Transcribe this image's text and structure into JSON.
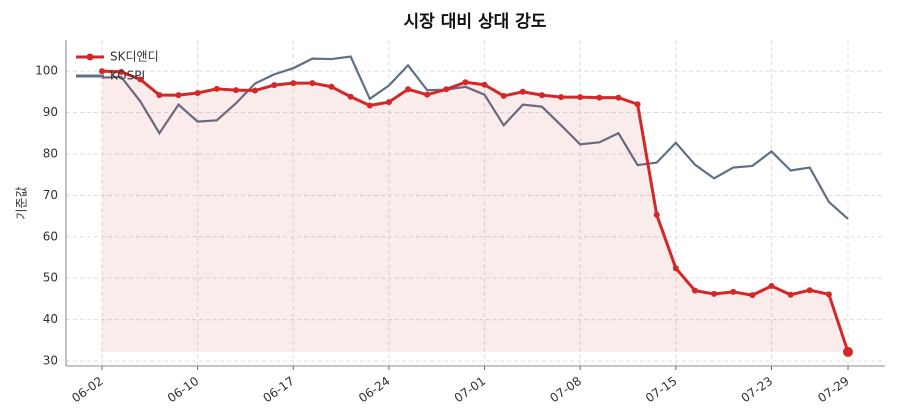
{
  "chart_data": {
    "type": "line",
    "title": "시장 대비 상대 강도",
    "y_label": "기준값",
    "categories": [
      "06-02",
      null,
      null,
      null,
      null,
      "06-10",
      null,
      null,
      null,
      null,
      "06-17",
      null,
      null,
      null,
      null,
      "06-24",
      null,
      null,
      null,
      null,
      "07-01",
      null,
      null,
      null,
      null,
      "07-08",
      null,
      null,
      null,
      null,
      "07-15",
      null,
      null,
      null,
      null,
      "07-23",
      null,
      null,
      null,
      "07-29"
    ],
    "series": [
      {
        "name": "SK디앤디",
        "color": "#d62728",
        "fill": true,
        "values": [
          100,
          99.8,
          98,
          94.2,
          94.2,
          94.7,
          95.7,
          95.4,
          95.3,
          96.6,
          97.1,
          97.1,
          96.2,
          93.8,
          91.7,
          92.5,
          95.6,
          94.3,
          95.6,
          97.3,
          96.7,
          94,
          95,
          94.2,
          93.7,
          93.7,
          93.6,
          93.6,
          92,
          65.3,
          52.4,
          47,
          46.2,
          46.7,
          45.9,
          48.1,
          46,
          47.1,
          46.1,
          32.2
        ]
      },
      {
        "name": "KOSPI",
        "color": "#5f6f86",
        "fill": false,
        "values": [
          98.4,
          98.6,
          92.7,
          85,
          91.9,
          87.8,
          88.1,
          92.2,
          97,
          99.2,
          100.7,
          103,
          102.9,
          103.5,
          93.3,
          96.5,
          101.4,
          95.4,
          95.5,
          96.2,
          94.3,
          86.9,
          91.9,
          91.4,
          86.9,
          82.3,
          82.8,
          85,
          77.3,
          77.9,
          82.7,
          77.4,
          74.1,
          76.7,
          77.1,
          80.6,
          76,
          76.7,
          68.4,
          64.3
        ]
      }
    ],
    "ylim": [
      28.8,
      107.5
    ],
    "yticks": [
      30,
      40,
      50,
      60,
      70,
      80,
      90,
      100
    ],
    "grid": true,
    "legend": "upper-left"
  }
}
